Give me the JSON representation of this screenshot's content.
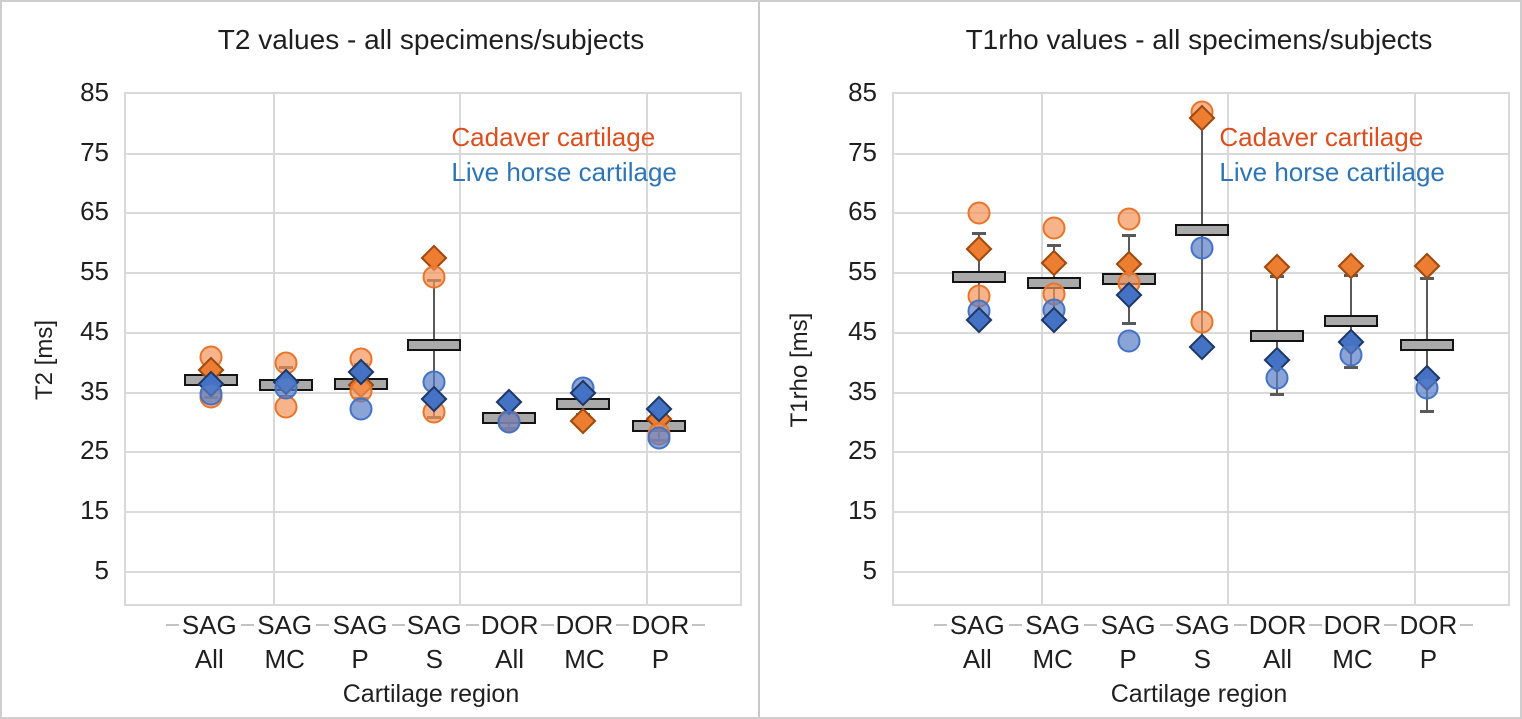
{
  "figure": {
    "background": "#ffffff",
    "grid_color": "#d9d9d9",
    "text_color": "#1f1f1f",
    "bar_fill": "#aaaaaa",
    "bar_border": "#141414",
    "whisker_color": "#595959"
  },
  "series_legend": [
    {
      "key": "cadaver",
      "label": "Cadaver cartilage",
      "color": "#dc4e1e"
    },
    {
      "key": "live",
      "label": "Live horse cartilage",
      "color": "#2e75b6"
    }
  ],
  "chart_data": [
    {
      "type": "scatter",
      "title": "T2 values - all specimens/subjects",
      "ylabel": "T2 [ms]",
      "xlabel": "Cartilage region",
      "ylim": [
        0,
        85
      ],
      "yticks": [
        85,
        75,
        65,
        55,
        45,
        35,
        25,
        15,
        5
      ],
      "grid": true,
      "legend_position": "upper-right-inside",
      "legend": [
        {
          "series": "cadaver",
          "label": "Cadaver cartilage",
          "color": "#dc4e1e"
        },
        {
          "series": "live",
          "label": "Live horse cartilage",
          "color": "#2e75b6"
        }
      ],
      "categories": [
        {
          "line1": "SAG",
          "line2": "All"
        },
        {
          "line1": "SAG",
          "line2": "MC"
        },
        {
          "line1": "SAG",
          "line2": "P"
        },
        {
          "line1": "SAG",
          "line2": "S"
        },
        {
          "line1": "DOR",
          "line2": "All"
        },
        {
          "line1": "DOR",
          "line2": "MC"
        },
        {
          "line1": "DOR",
          "line2": "P"
        }
      ],
      "groups": [
        {
          "category": "SAG All",
          "bar_mean": 37.1,
          "whisker": {
            "top": 39.8,
            "bottom": 34.3
          },
          "points": [
            {
              "series": "cadaver",
              "shape": "circle",
              "value": 41.0
            },
            {
              "series": "cadaver",
              "shape": "diamond",
              "value": 38.8
            },
            {
              "series": "cadaver",
              "shape": "circle",
              "value": 34.2
            },
            {
              "series": "live",
              "shape": "diamond",
              "value": 36.5
            },
            {
              "series": "live",
              "shape": "circle",
              "value": 34.8
            }
          ]
        },
        {
          "category": "SAG MC",
          "bar_mean": 36.3,
          "whisker": {
            "top": 39.3,
            "bottom": 34.4
          },
          "points": [
            {
              "series": "cadaver",
              "shape": "circle",
              "value": 40.0
            },
            {
              "series": "cadaver",
              "shape": "circle",
              "value": 32.6
            },
            {
              "series": "live",
              "shape": "diamond",
              "value": 36.8
            },
            {
              "series": "live",
              "shape": "circle",
              "value": 35.7
            }
          ]
        },
        {
          "category": "SAG P",
          "bar_mean": 36.5,
          "whisker": {
            "top": 39.8,
            "bottom": 34.0
          },
          "points": [
            {
              "series": "cadaver",
              "shape": "circle",
              "value": 40.6
            },
            {
              "series": "cadaver",
              "shape": "diamond",
              "value": 36.2
            },
            {
              "series": "cadaver",
              "shape": "circle",
              "value": 35.3
            },
            {
              "series": "live",
              "shape": "diamond",
              "value": 38.4
            },
            {
              "series": "live",
              "shape": "circle",
              "value": 32.2
            }
          ]
        },
        {
          "category": "SAG S",
          "bar_mean": 43.0,
          "whisker": {
            "top": 53.8,
            "bottom": 30.9
          },
          "points": [
            {
              "series": "cadaver",
              "shape": "diamond",
              "value": 57.5
            },
            {
              "series": "cadaver",
              "shape": "circle",
              "value": 54.3
            },
            {
              "series": "cadaver",
              "shape": "circle",
              "value": 31.8
            },
            {
              "series": "live",
              "shape": "circle",
              "value": 36.7
            },
            {
              "series": "live",
              "shape": "diamond",
              "value": 33.9
            }
          ]
        },
        {
          "category": "DOR All",
          "bar_mean": 30.7,
          "whisker": {
            "top": 31.5,
            "bottom": 29.0
          },
          "points": [
            {
              "series": "cadaver",
              "shape": "circle",
              "value": 30.3
            },
            {
              "series": "live",
              "shape": "diamond",
              "value": 33.4
            },
            {
              "series": "live",
              "shape": "circle",
              "value": 30.0
            }
          ]
        },
        {
          "category": "DOR MC",
          "bar_mean": 33.0,
          "whisker": {
            "top": 35.0,
            "bottom": 31.4
          },
          "points": [
            {
              "series": "cadaver",
              "shape": "diamond",
              "value": 30.2
            },
            {
              "series": "live",
              "shape": "circle",
              "value": 35.8
            },
            {
              "series": "live",
              "shape": "diamond",
              "value": 34.9
            }
          ]
        },
        {
          "category": "DOR P",
          "bar_mean": 29.4,
          "whisker": {
            "top": 30.4,
            "bottom": 27.1
          },
          "points": [
            {
              "series": "cadaver",
              "shape": "diamond",
              "value": 30.5
            },
            {
              "series": "cadaver",
              "shape": "circle",
              "value": 28.0
            },
            {
              "series": "live",
              "shape": "diamond",
              "value": 32.3
            },
            {
              "series": "live",
              "shape": "circle",
              "value": 27.4
            }
          ]
        }
      ]
    },
    {
      "type": "scatter",
      "title": "T1rho values - all specimens/subjects",
      "ylabel": "T1rho [ms]",
      "xlabel": "Cartilage region",
      "ylim": [
        0,
        85
      ],
      "yticks": [
        85,
        75,
        65,
        55,
        45,
        35,
        25,
        15,
        5
      ],
      "grid": true,
      "legend_position": "upper-right-inside",
      "legend": [
        {
          "series": "cadaver",
          "label": "Cadaver cartilage",
          "color": "#dc4e1e"
        },
        {
          "series": "live",
          "label": "Live horse cartilage",
          "color": "#2e75b6"
        }
      ],
      "categories": [
        {
          "line1": "SAG",
          "line2": "All"
        },
        {
          "line1": "SAG",
          "line2": "MC"
        },
        {
          "line1": "SAG",
          "line2": "P"
        },
        {
          "line1": "SAG",
          "line2": "S"
        },
        {
          "line1": "DOR",
          "line2": "All"
        },
        {
          "line1": "DOR",
          "line2": "MC"
        },
        {
          "line1": "DOR",
          "line2": "P"
        }
      ],
      "groups": [
        {
          "category": "SAG All",
          "bar_mean": 54.3,
          "whisker": {
            "top": 61.8,
            "bottom": 46.8
          },
          "points": [
            {
              "series": "cadaver",
              "shape": "circle",
              "value": 65.0
            },
            {
              "series": "cadaver",
              "shape": "diamond",
              "value": 59.0
            },
            {
              "series": "cadaver",
              "shape": "circle",
              "value": 51.2
            },
            {
              "series": "live",
              "shape": "circle",
              "value": 48.6
            },
            {
              "series": "live",
              "shape": "diamond",
              "value": 47.1
            }
          ]
        },
        {
          "category": "SAG MC",
          "bar_mean": 53.4,
          "whisker": {
            "top": 59.7,
            "bottom": 47.0
          },
          "points": [
            {
              "series": "cadaver",
              "shape": "circle",
              "value": 62.5
            },
            {
              "series": "cadaver",
              "shape": "diamond",
              "value": 56.7
            },
            {
              "series": "cadaver",
              "shape": "circle",
              "value": 51.5
            },
            {
              "series": "live",
              "shape": "circle",
              "value": 48.9
            },
            {
              "series": "live",
              "shape": "diamond",
              "value": 47.2
            }
          ]
        },
        {
          "category": "SAG P",
          "bar_mean": 54.0,
          "whisker": {
            "top": 61.3,
            "bottom": 46.7
          },
          "points": [
            {
              "series": "cadaver",
              "shape": "circle",
              "value": 64.0
            },
            {
              "series": "cadaver",
              "shape": "diamond",
              "value": 56.5
            },
            {
              "series": "cadaver",
              "shape": "circle",
              "value": 53.3
            },
            {
              "series": "live",
              "shape": "diamond",
              "value": 51.3
            },
            {
              "series": "live",
              "shape": "circle",
              "value": 43.6
            }
          ]
        },
        {
          "category": "SAG S",
          "bar_mean": 62.2,
          "whisker": {
            "top": 80.8,
            "bottom": 42.6
          },
          "points": [
            {
              "series": "cadaver",
              "shape": "circle",
              "value": 82.0
            },
            {
              "series": "cadaver",
              "shape": "diamond",
              "value": 81.0
            },
            {
              "series": "cadaver",
              "shape": "circle",
              "value": 46.8
            },
            {
              "series": "live",
              "shape": "circle",
              "value": 59.2
            },
            {
              "series": "live",
              "shape": "diamond",
              "value": 42.7
            }
          ]
        },
        {
          "category": "DOR All",
          "bar_mean": 44.5,
          "whisker": {
            "top": 54.5,
            "bottom": 34.7
          },
          "points": [
            {
              "series": "cadaver",
              "shape": "diamond",
              "value": 56.0
            },
            {
              "series": "live",
              "shape": "diamond",
              "value": 40.5
            },
            {
              "series": "live",
              "shape": "circle",
              "value": 37.5
            }
          ]
        },
        {
          "category": "DOR MC",
          "bar_mean": 47.0,
          "whisker": {
            "top": 54.7,
            "bottom": 39.2
          },
          "points": [
            {
              "series": "cadaver",
              "shape": "diamond",
              "value": 56.2
            },
            {
              "series": "live",
              "shape": "diamond",
              "value": 43.5
            },
            {
              "series": "live",
              "shape": "circle",
              "value": 41.2
            }
          ]
        },
        {
          "category": "DOR P",
          "bar_mean": 42.9,
          "whisker": {
            "top": 54.1,
            "bottom": 31.9
          },
          "points": [
            {
              "series": "cadaver",
              "shape": "diamond",
              "value": 56.2
            },
            {
              "series": "live",
              "shape": "diamond",
              "value": 37.5
            },
            {
              "series": "live",
              "shape": "circle",
              "value": 35.7
            }
          ]
        }
      ]
    }
  ]
}
